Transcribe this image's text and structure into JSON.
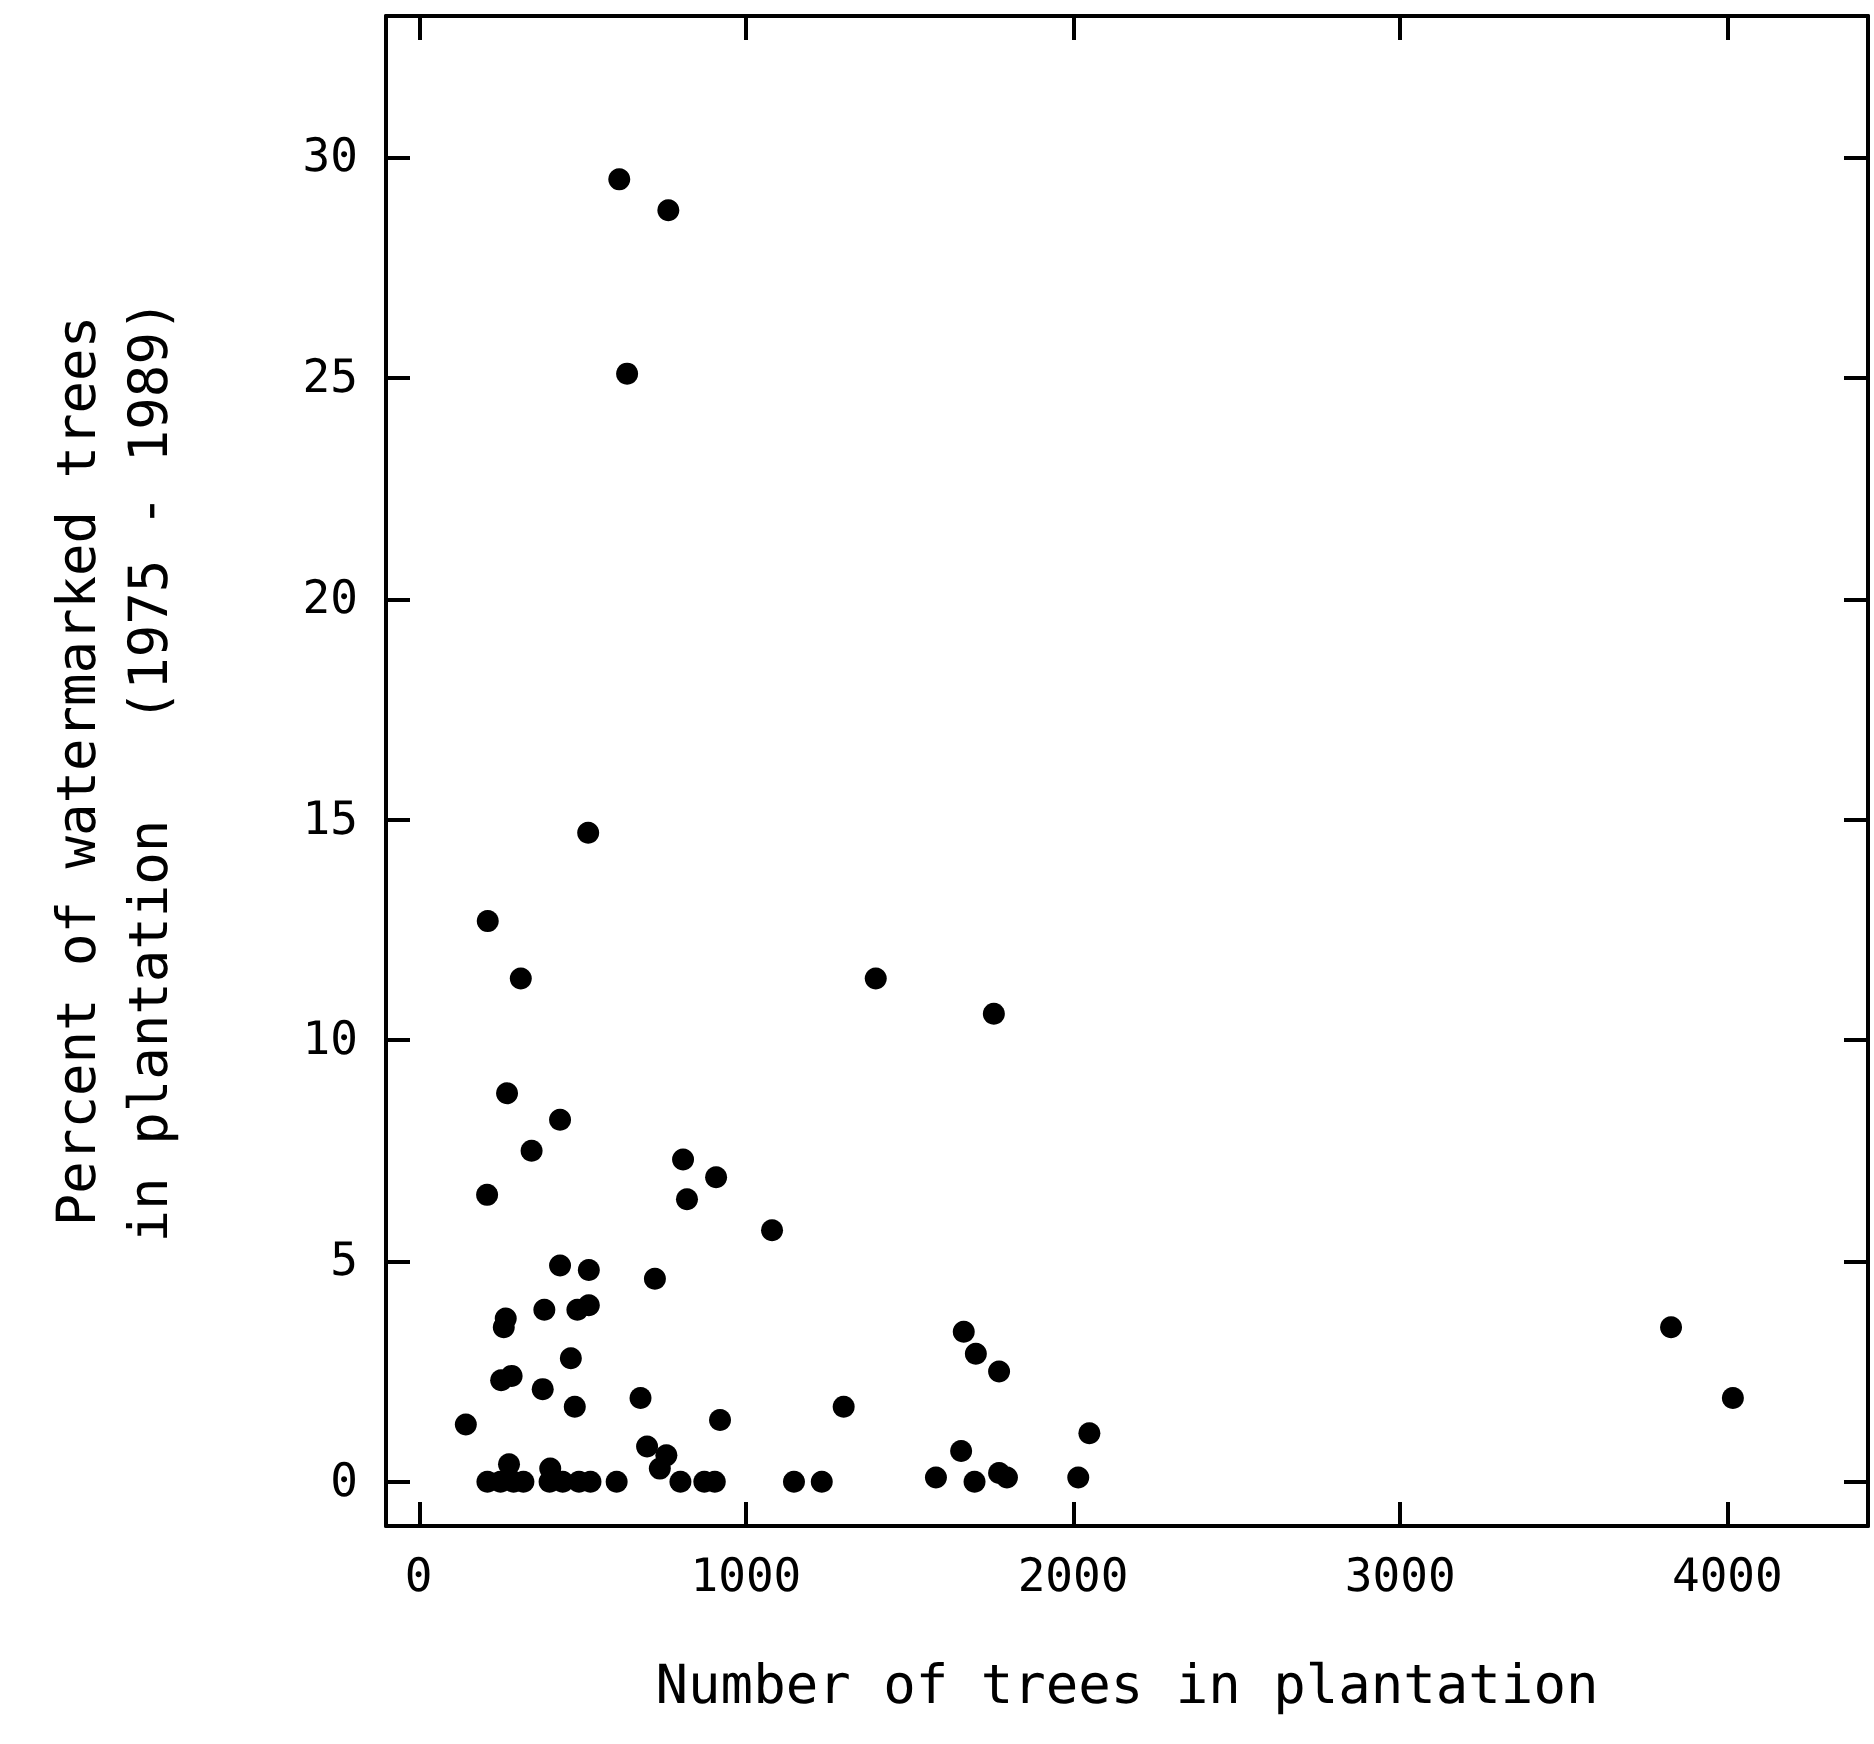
{
  "chart_data": {
    "type": "scatter",
    "xlabel": "Number of trees in plantation",
    "ylabel": "Percent of watermarked trees\nin plantation   (1975 - 1989)",
    "x": [
      211,
      312,
      1397,
      1758,
      270,
      432,
      345,
      808,
      909,
      820,
      209,
      1080,
      432,
      520,
      722,
      384,
      485,
      520,
      260,
      266,
      1666,
      1703,
      1774,
      465,
      252,
      284,
      379,
      477,
      678,
      1299,
      144,
      921,
      698,
      2050,
      1658,
      757,
      737,
      276,
      402,
      210,
      250,
      290,
      320,
      400,
      440,
      490,
      525,
      605,
      800,
      873,
      905,
      1147,
      1232,
      1581,
      1699,
      1774,
      1798,
      2016,
      613,
      763,
      637,
      518,
      3828,
      4017
    ],
    "series": [
      {
        "color": "#000000",
        "values": [
          12.7,
          11.4,
          11.4,
          10.6,
          8.8,
          8.2,
          7.5,
          7.3,
          6.9,
          6.4,
          6.5,
          5.7,
          4.9,
          4.8,
          4.6,
          3.9,
          3.9,
          4.0,
          3.5,
          3.7,
          3.4,
          2.9,
          2.5,
          2.8,
          2.3,
          2.4,
          2.1,
          1.7,
          1.9,
          1.7,
          1.3,
          1.4,
          0.8,
          1.1,
          0.7,
          0.6,
          0.3,
          0.4,
          0.3,
          0,
          0,
          0,
          0,
          0,
          0,
          0,
          0,
          0,
          0,
          0,
          0,
          0,
          0,
          0.1,
          0,
          0.2,
          0.1,
          0.1,
          29.5,
          28.8,
          25.1,
          14.7,
          3.5,
          1.9
        ]
      }
    ],
    "xlim": [
      -100,
      4430
    ],
    "ylim": [
      -1,
      33.2
    ],
    "xticks": [
      0,
      1000,
      2000,
      3000,
      4000
    ],
    "yticks": [
      0,
      5,
      10,
      15,
      20,
      25,
      30
    ],
    "grid": false,
    "marker": "circle"
  }
}
